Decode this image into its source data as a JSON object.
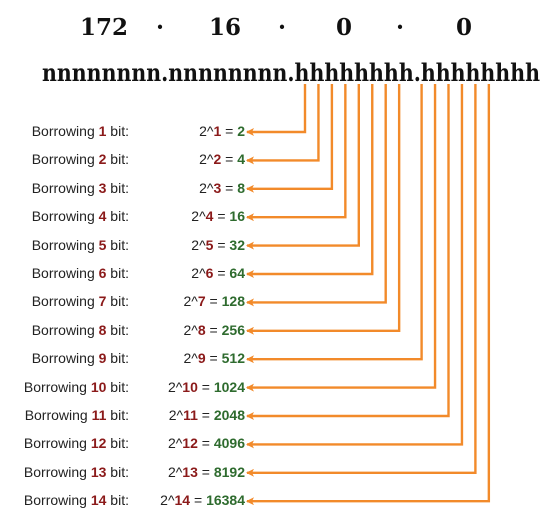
{
  "header": {
    "octets": [
      "172",
      "16",
      "0",
      "0"
    ],
    "dots": [
      "·",
      "·",
      "·"
    ],
    "bit_pattern": "nnnnnnnn.nnnnnnnn.hhhhhhhh.hhhhhhhh"
  },
  "rows": [
    {
      "prefix": "Borrowing ",
      "n": "1",
      "suffix": " bit:",
      "base": "2^",
      "eq": " = ",
      "result": "2"
    },
    {
      "prefix": "Borrowing ",
      "n": "2",
      "suffix": " bit:",
      "base": "2^",
      "eq": " = ",
      "result": "4"
    },
    {
      "prefix": "Borrowing ",
      "n": "3",
      "suffix": " bit:",
      "base": "2^",
      "eq": " = ",
      "result": "8"
    },
    {
      "prefix": "Borrowing ",
      "n": "4",
      "suffix": " bit:",
      "base": "2^",
      "eq": " = ",
      "result": "16"
    },
    {
      "prefix": "Borrowing ",
      "n": "5",
      "suffix": " bit:",
      "base": "2^",
      "eq": " = ",
      "result": "32"
    },
    {
      "prefix": "Borrowing ",
      "n": "6",
      "suffix": " bit:",
      "base": "2^",
      "eq": " = ",
      "result": "64"
    },
    {
      "prefix": "Borrowing ",
      "n": "7",
      "suffix": " bit:",
      "base": "2^",
      "eq": " = ",
      "result": "128"
    },
    {
      "prefix": "Borrowing ",
      "n": "8",
      "suffix": " bit:",
      "base": "2^",
      "eq": " = ",
      "result": "256"
    },
    {
      "prefix": "Borrowing ",
      "n": "9",
      "suffix": " bit:",
      "base": "2^",
      "eq": " = ",
      "result": "512"
    },
    {
      "prefix": "Borrowing ",
      "n": "10",
      "suffix": " bit:",
      "base": "2^",
      "eq": " = ",
      "result": "1024"
    },
    {
      "prefix": "Borrowing ",
      "n": "11",
      "suffix": " bit:",
      "base": "2^",
      "eq": " = ",
      "result": "2048"
    },
    {
      "prefix": "Borrowing ",
      "n": "12",
      "suffix": " bit:",
      "base": "2^",
      "eq": " = ",
      "result": "4096"
    },
    {
      "prefix": "Borrowing ",
      "n": "13",
      "suffix": " bit:",
      "base": "2^",
      "eq": " = ",
      "result": "8192"
    },
    {
      "prefix": "Borrowing ",
      "n": "14",
      "suffix": " bit:",
      "base": "2^",
      "eq": " = ",
      "result": "16384"
    }
  ],
  "colors": {
    "arrow": "#f28a2a",
    "bit_number": "#8b1a1a",
    "result": "#2e6b2e",
    "text": "#222222"
  }
}
